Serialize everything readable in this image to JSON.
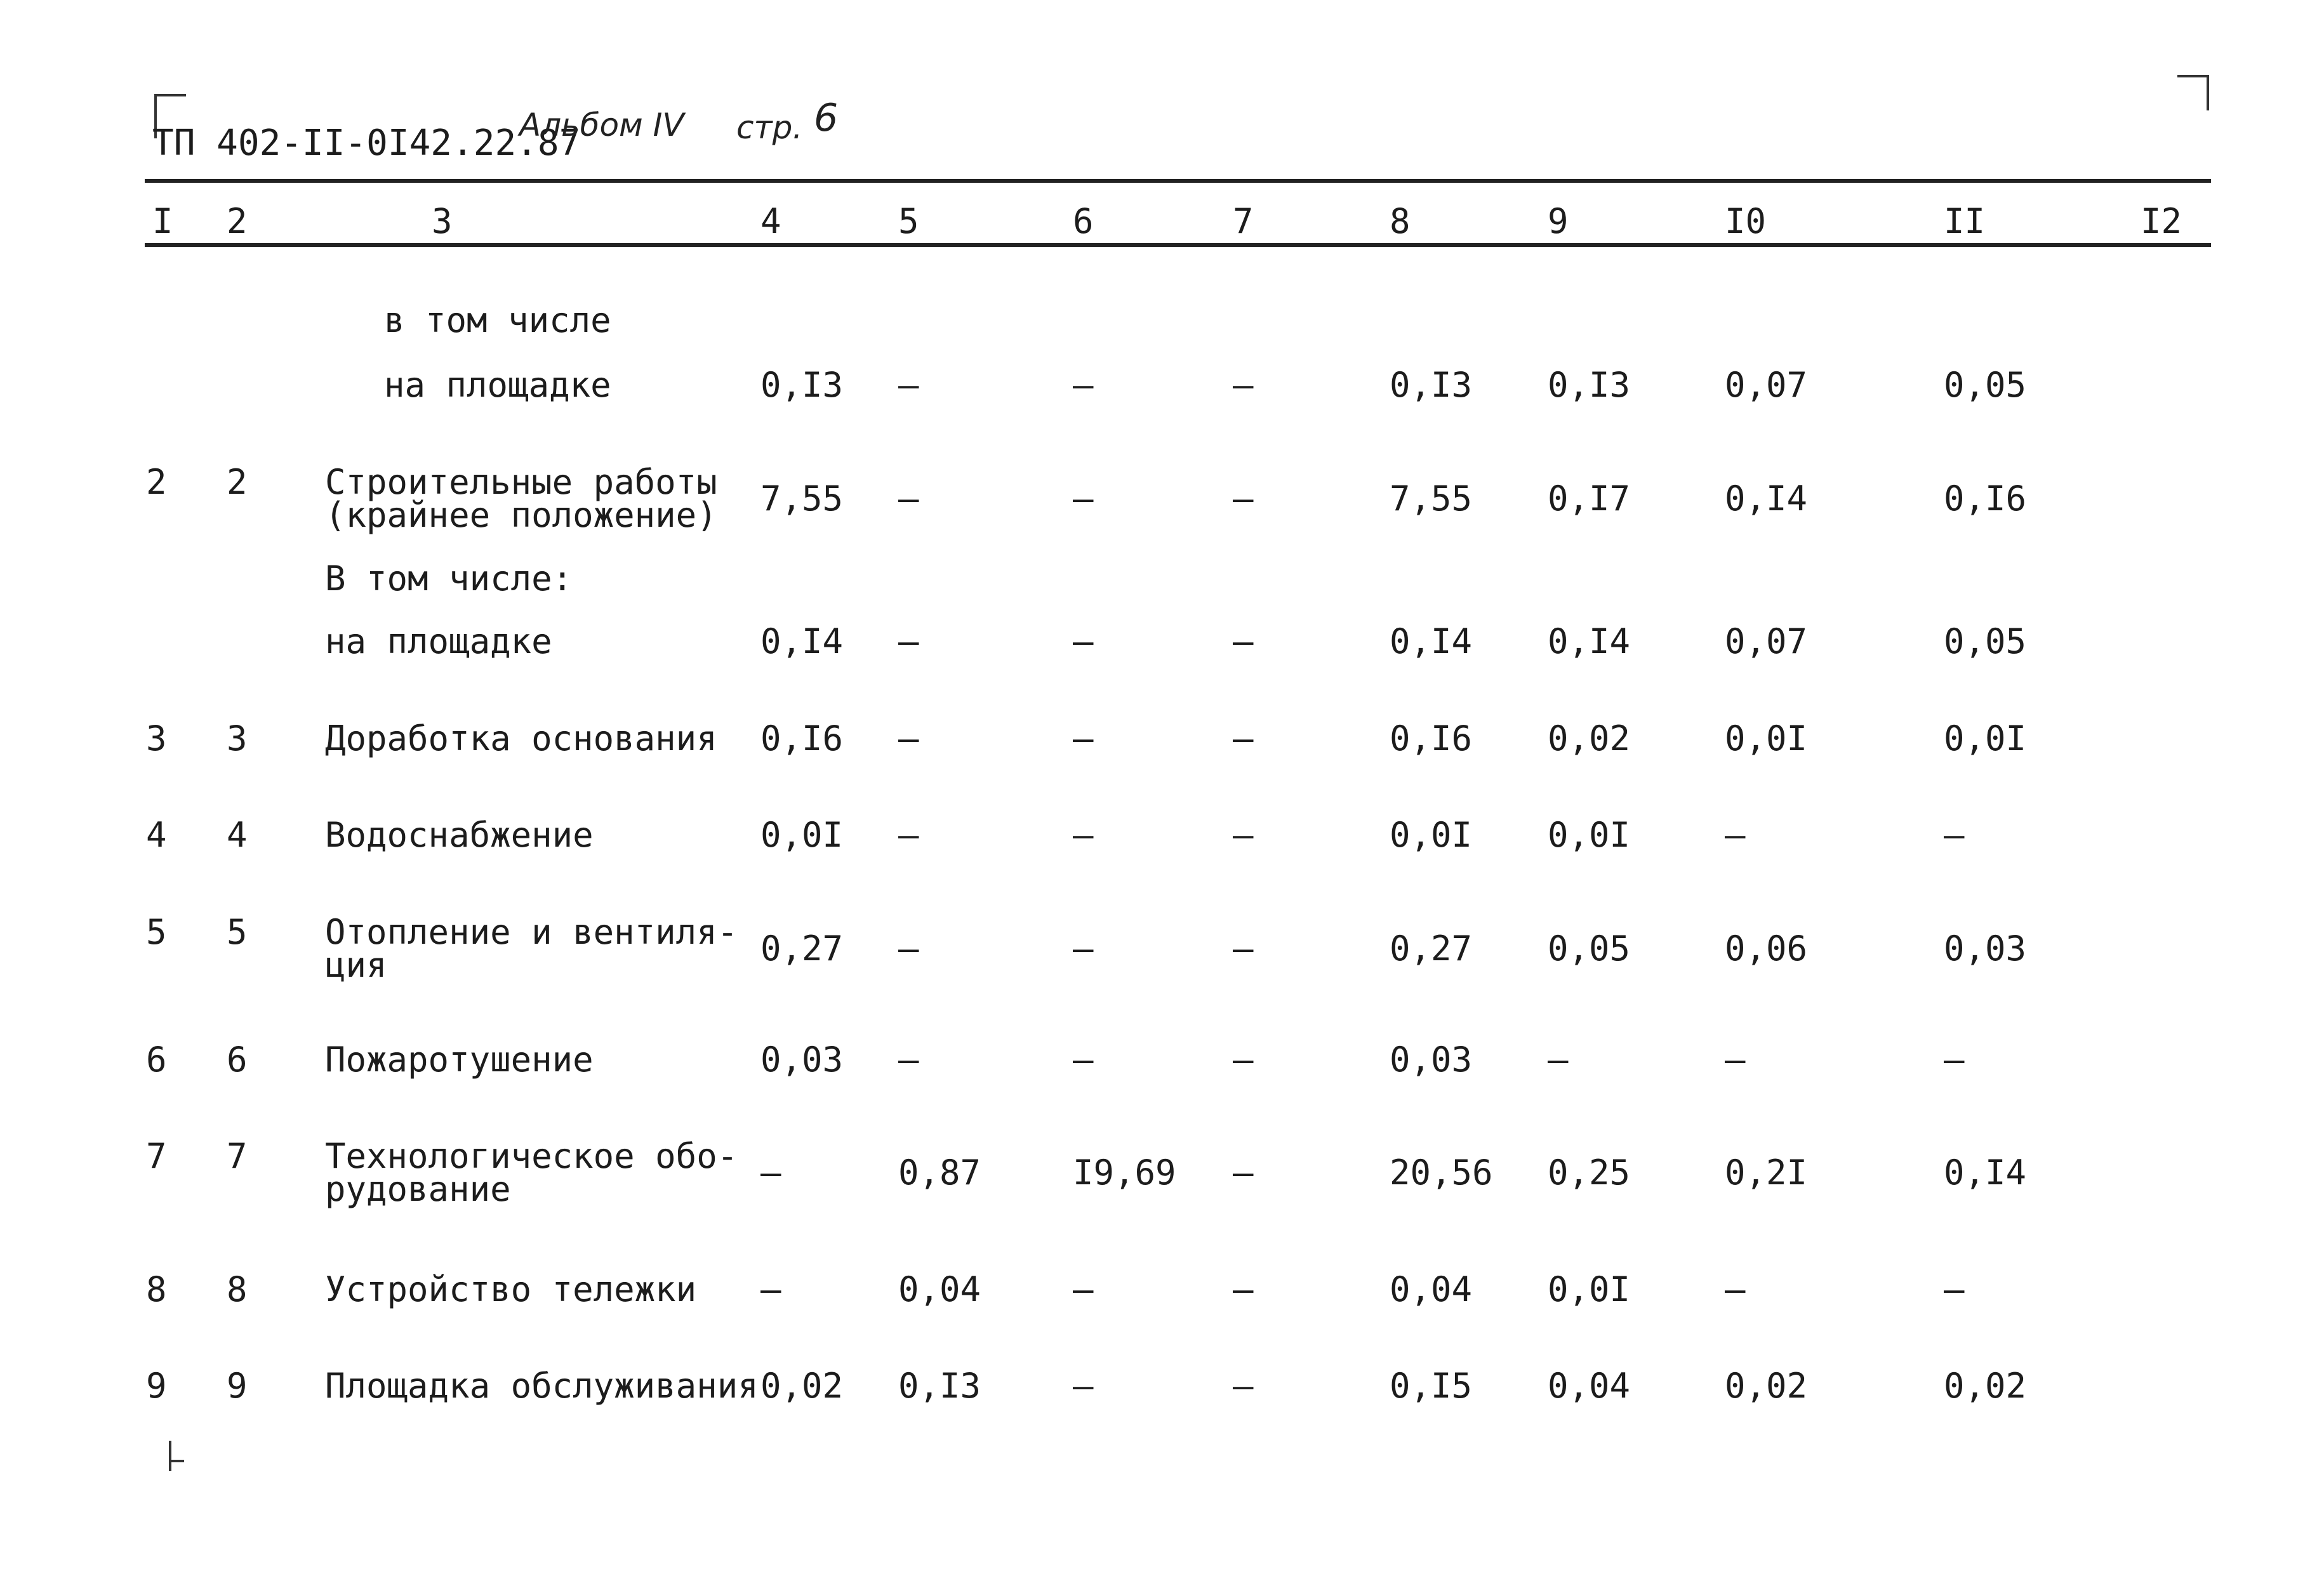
{
  "header": {
    "doc_code": "ТП 402-II-0I42.22.87",
    "album": "Альбом IV",
    "page_prefix": "стр.",
    "page_number": "6"
  },
  "columns": [
    "I",
    "2",
    "3",
    "4",
    "5",
    "6",
    "7",
    "8",
    "9",
    "I0",
    "II",
    "I2"
  ],
  "rows": [
    {
      "c1": "",
      "c2": "",
      "name": [
        "в том числе"
      ],
      "v": [
        "",
        "",
        "",
        "",
        "",
        "",
        "",
        ""
      ]
    },
    {
      "c1": "",
      "c2": "",
      "name": [
        "на площадке"
      ],
      "v": [
        "0,I3",
        "–",
        "–",
        "–",
        "0,I3",
        "0,I3",
        "0,07",
        "0,05"
      ]
    },
    {
      "c1": "2",
      "c2": "2",
      "name": [
        "Строительные работы",
        "(крайнее положение)"
      ],
      "v": [
        "7,55",
        "–",
        "–",
        "–",
        "7,55",
        "0,I7",
        "0,I4",
        "0,I6"
      ]
    },
    {
      "c1": "",
      "c2": "",
      "name": [
        "В том числе:"
      ],
      "v": [
        "",
        "",
        "",
        "",
        "",
        "",
        "",
        ""
      ]
    },
    {
      "c1": "",
      "c2": "",
      "name": [
        "на площадке"
      ],
      "v": [
        "0,I4",
        "–",
        "–",
        "–",
        "0,I4",
        "0,I4",
        "0,07",
        "0,05"
      ]
    },
    {
      "c1": "3",
      "c2": "3",
      "name": [
        "Доработка основания"
      ],
      "v": [
        "0,I6",
        "–",
        "–",
        "–",
        "0,I6",
        "0,02",
        "0,0I",
        "0,0I"
      ]
    },
    {
      "c1": "4",
      "c2": "4",
      "name": [
        "Водоснабжение"
      ],
      "v": [
        "0,0I",
        "–",
        "–",
        "–",
        "0,0I",
        "0,0I",
        "–",
        "–"
      ]
    },
    {
      "c1": "5",
      "c2": "5",
      "name": [
        "Отопление и вентиля-",
        "ция"
      ],
      "v": [
        "0,27",
        "–",
        "–",
        "–",
        "0,27",
        "0,05",
        "0,06",
        "0,03"
      ]
    },
    {
      "c1": "6",
      "c2": "6",
      "name": [
        "Пожаротушение"
      ],
      "v": [
        "0,03",
        "–",
        "–",
        "–",
        "0,03",
        "–",
        "–",
        "–"
      ]
    },
    {
      "c1": "7",
      "c2": "7",
      "name": [
        "Технологическое обо-",
        "рудование"
      ],
      "v": [
        "–",
        "0,87",
        "I9,69",
        "–",
        "20,56",
        "0,25",
        "0,2I",
        "0,I4"
      ]
    },
    {
      "c1": "8",
      "c2": "8",
      "name": [
        "Устройство тележки"
      ],
      "v": [
        "–",
        "0,04",
        "–",
        "–",
        "0,04",
        "0,0I",
        "–",
        "–"
      ]
    },
    {
      "c1": "9",
      "c2": "9",
      "name": [
        "Площадка обслуживания"
      ],
      "v": [
        "0,02",
        "0,I3",
        "–",
        "–",
        "0,I5",
        "0,04",
        "0,02",
        "0,02"
      ]
    }
  ]
}
